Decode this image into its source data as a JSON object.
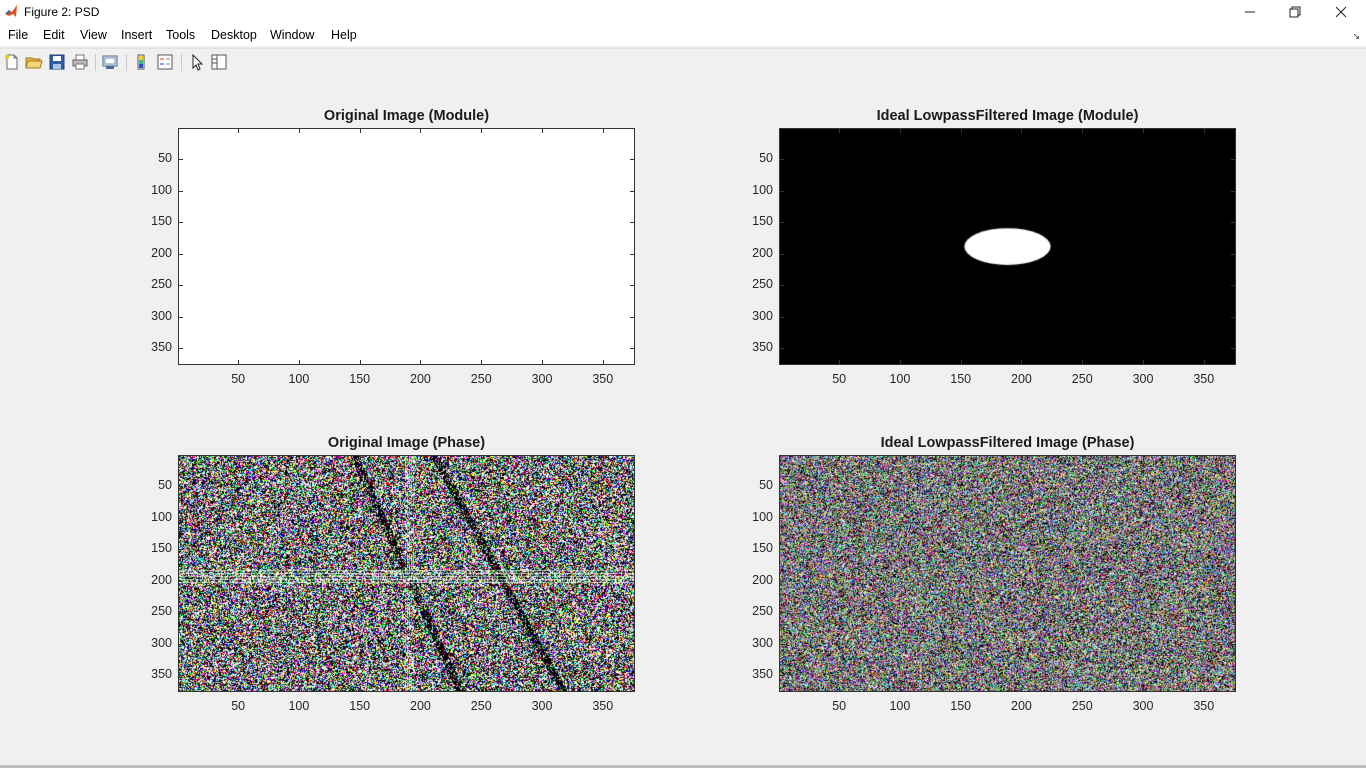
{
  "window": {
    "title": "Figure 2: PSD",
    "icon": "matlab-icon",
    "controls": [
      "minimize-icon",
      "restore-icon",
      "close-icon"
    ]
  },
  "menu": [
    "File",
    "Edit",
    "View",
    "Insert",
    "Tools",
    "Desktop",
    "Window",
    "Help"
  ],
  "toolbar": [
    "new-figure-icon",
    "open-file-icon",
    "save-icon",
    "print-icon",
    "link-plot-icon",
    "colorbar-icon",
    "legend-icon",
    "edit-plot-icon",
    "property-inspector-icon"
  ],
  "chart_data": [
    {
      "type": "heatmap",
      "title": "Original Image (Module)",
      "xticks": [
        "50",
        "100",
        "150",
        "200",
        "250",
        "300",
        "350"
      ],
      "yticks": [
        "50",
        "100",
        "150",
        "200",
        "250",
        "300",
        "350"
      ],
      "content": "uniform white",
      "colormap": "gray"
    },
    {
      "type": "heatmap",
      "title": "Ideal LowpassFiltered Image (Module)",
      "xticks": [
        "50",
        "100",
        "150",
        "200",
        "250",
        "300",
        "350"
      ],
      "yticks": [
        "50",
        "100",
        "150",
        "200",
        "250",
        "300",
        "350"
      ],
      "content": "black background with white ellipse",
      "ellipse": {
        "cx": 188,
        "cy": 188,
        "rx": 29,
        "ry": 30
      },
      "colormap": "gray"
    },
    {
      "type": "heatmap",
      "title": "Original Image (Phase)",
      "xticks": [
        "50",
        "100",
        "150",
        "200",
        "250",
        "300",
        "350"
      ],
      "yticks": [
        "50",
        "100",
        "150",
        "200",
        "250",
        "300",
        "350"
      ],
      "content": "noise-like phase pattern with central cross artifacts"
    },
    {
      "type": "heatmap",
      "title": "Ideal LowpassFiltered Image (Phase)",
      "xticks": [
        "50",
        "100",
        "150",
        "200",
        "250",
        "300",
        "350"
      ],
      "yticks": [
        "50",
        "100",
        "150",
        "200",
        "250",
        "300",
        "350"
      ],
      "content": "uniform color noise phase pattern"
    }
  ]
}
